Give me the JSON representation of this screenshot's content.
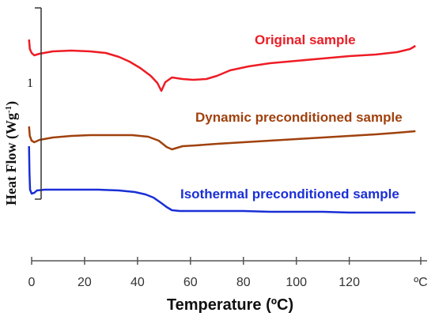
{
  "chart_data": {
    "type": "line",
    "xlabel": "Temperature (ºC)",
    "ylabel_main": "Heat Flow (Wg",
    "ylabel_sup": "-1",
    "ylabel_close": ")",
    "scale_bar_label": "1",
    "x_ticks": [
      "0",
      "20",
      "40",
      "60",
      "80",
      "100",
      "120",
      "ºC"
    ],
    "x_tick_values": [
      0,
      20,
      40,
      60,
      80,
      100,
      120,
      147
    ],
    "xlim": [
      0,
      147
    ],
    "series": [
      {
        "name": "Original sample",
        "color": "#ee1c25",
        "points": [
          [
            -1.0,
            50
          ],
          [
            -0.7,
            62
          ],
          [
            0,
            67
          ],
          [
            1,
            70
          ],
          [
            3,
            68
          ],
          [
            8,
            65
          ],
          [
            15,
            64
          ],
          [
            22,
            65
          ],
          [
            28,
            67
          ],
          [
            33,
            72
          ],
          [
            37,
            78
          ],
          [
            41,
            86
          ],
          [
            45,
            96
          ],
          [
            47.5,
            105
          ],
          [
            49,
            115
          ],
          [
            50.5,
            104
          ],
          [
            53,
            98
          ],
          [
            57,
            100
          ],
          [
            61,
            101
          ],
          [
            66,
            100
          ],
          [
            70,
            96
          ],
          [
            75,
            89
          ],
          [
            82,
            84
          ],
          [
            90,
            80
          ],
          [
            100,
            77
          ],
          [
            110,
            74
          ],
          [
            120,
            71
          ],
          [
            130,
            69
          ],
          [
            138,
            66
          ],
          [
            143,
            62
          ],
          [
            145,
            58
          ]
        ]
      },
      {
        "name": "Dynamic preconditioned sample",
        "color": "#a0410d",
        "points": [
          [
            -1.0,
            160
          ],
          [
            -0.7,
            172
          ],
          [
            0,
            178
          ],
          [
            1,
            180
          ],
          [
            3,
            177
          ],
          [
            8,
            174
          ],
          [
            15,
            172
          ],
          [
            22,
            171
          ],
          [
            30,
            171
          ],
          [
            38,
            171
          ],
          [
            44,
            173
          ],
          [
            48,
            178
          ],
          [
            51,
            186
          ],
          [
            53,
            189
          ],
          [
            57,
            185
          ],
          [
            62,
            184
          ],
          [
            70,
            182
          ],
          [
            80,
            180
          ],
          [
            90,
            178
          ],
          [
            100,
            176
          ],
          [
            110,
            174
          ],
          [
            120,
            172
          ],
          [
            130,
            170
          ],
          [
            138,
            168
          ],
          [
            145,
            166
          ]
        ]
      },
      {
        "name": "Isothermal preconditioned sample",
        "color": "#1a2fd6",
        "points": [
          [
            -1.0,
            185
          ],
          [
            -0.8,
            220
          ],
          [
            -0.6,
            240
          ],
          [
            0,
            245
          ],
          [
            1,
            244
          ],
          [
            2,
            241
          ],
          [
            5,
            240
          ],
          [
            15,
            240
          ],
          [
            25,
            240
          ],
          [
            33,
            241
          ],
          [
            39,
            243
          ],
          [
            43,
            246
          ],
          [
            46,
            250
          ],
          [
            49,
            257
          ],
          [
            51,
            262
          ],
          [
            53,
            266
          ],
          [
            56,
            267
          ],
          [
            70,
            267
          ],
          [
            80,
            267
          ],
          [
            90,
            268
          ],
          [
            100,
            268
          ],
          [
            110,
            268
          ],
          [
            120,
            269
          ],
          [
            130,
            269
          ],
          [
            140,
            269
          ],
          [
            145,
            269
          ]
        ]
      }
    ],
    "grid": false,
    "legend": "inline labels"
  }
}
